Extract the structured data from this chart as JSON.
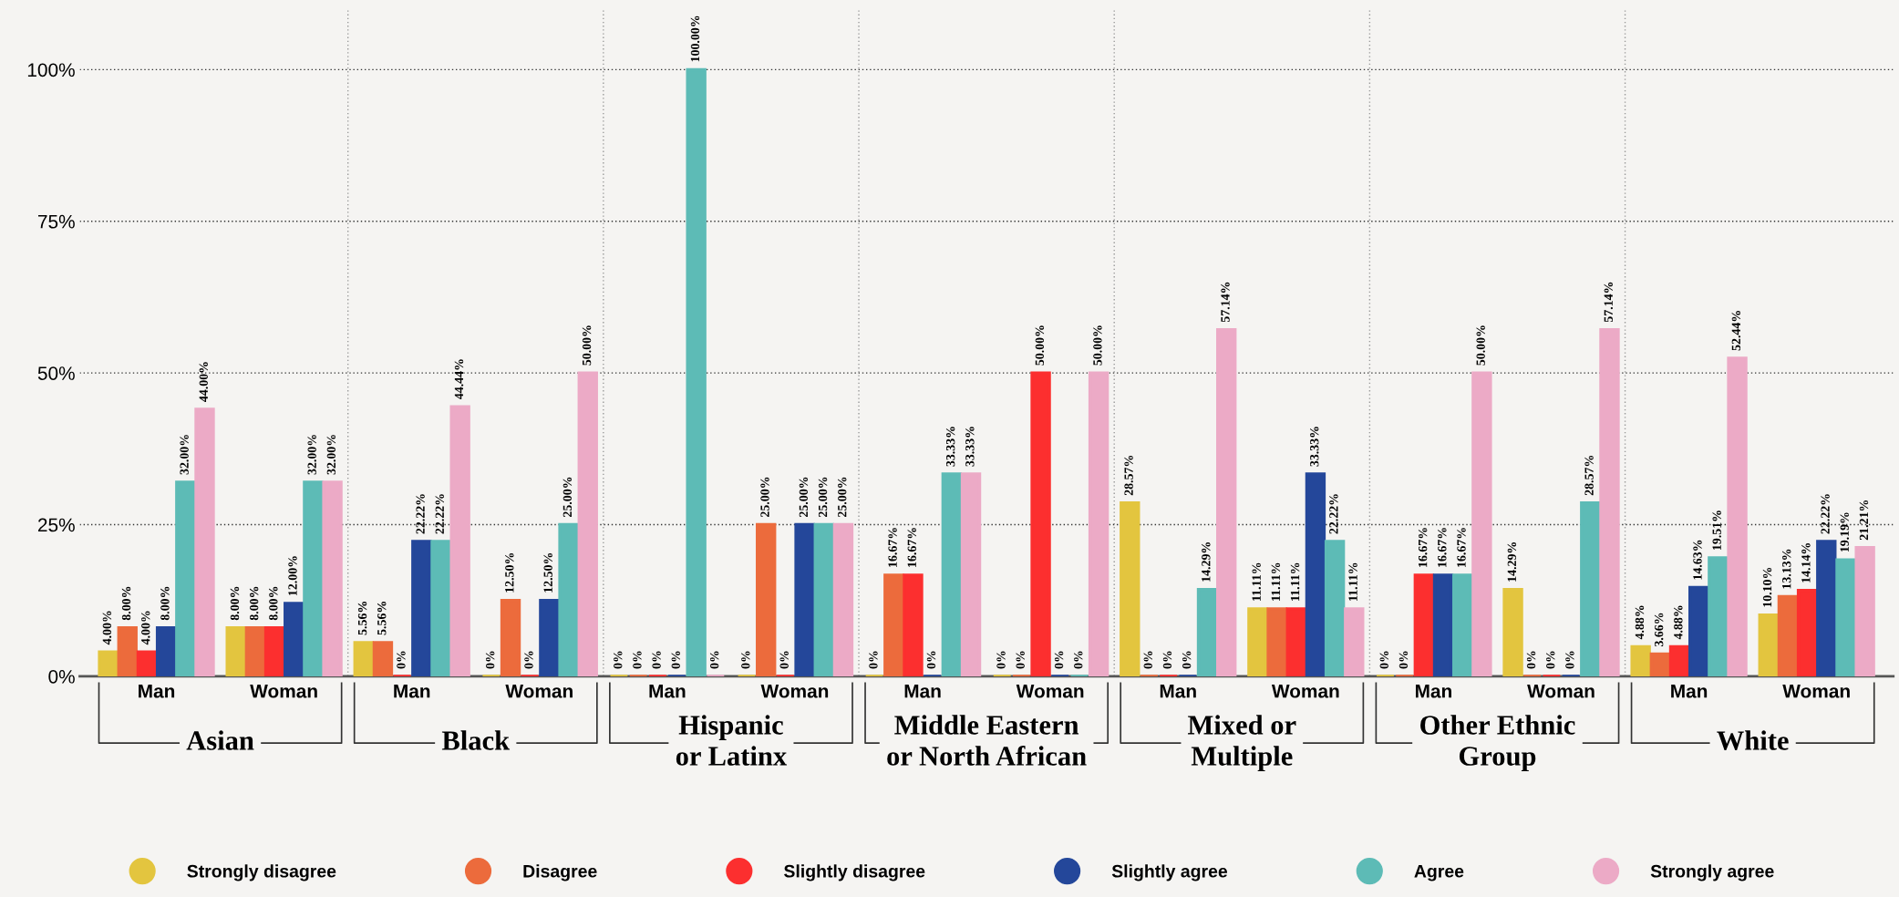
{
  "chart_data": {
    "type": "bar",
    "categories": [
      "Man",
      "Woman",
      "Man",
      "Woman",
      "Man",
      "Woman",
      "Man",
      "Woman",
      "Man",
      "Woman",
      "Man",
      "Woman",
      "Man",
      "Woman"
    ],
    "annotations": [
      "Asian",
      "Black",
      "Hispanic\nor Latinx",
      "Middle Eastern\nor North African",
      "Mixed or\nMultiple",
      "Other Ethnic\nGroup",
      "White"
    ],
    "series": [
      {
        "name": "Strongly disagree",
        "color": "#e3c53f",
        "values": [
          4,
          8,
          5.56,
          0,
          0,
          0,
          0,
          0,
          28.57,
          11.11,
          0,
          14.29,
          4.88,
          10.1
        ],
        "value_labels": [
          "4.00%",
          "8.00%",
          "5.56%",
          "0%",
          "0%",
          "0%",
          "0%",
          "0%",
          "28.57%",
          "11.11%",
          "0%",
          "14.29%",
          "4.88%",
          "10.10%"
        ]
      },
      {
        "name": "Disagree",
        "color": "#ec6b3c",
        "values": [
          8,
          8,
          5.56,
          12.5,
          0,
          25,
          16.67,
          0,
          0,
          11.11,
          0,
          0,
          3.66,
          13.13
        ],
        "value_labels": [
          "8.00%",
          "8.00%",
          "5.56%",
          "12.50%",
          "0%",
          "25.00%",
          "16.67%",
          "0%",
          "0%",
          "11.11%",
          "0%",
          "0%",
          "3.66%",
          "13.13%"
        ]
      },
      {
        "name": "Slightly disagree",
        "color": "#fc2f2f",
        "values": [
          4,
          8,
          0,
          0,
          0,
          0,
          16.67,
          50,
          0,
          11.11,
          16.67,
          0,
          4.88,
          14.14
        ],
        "value_labels": [
          "4.00%",
          "8.00%",
          "0%",
          "0%",
          "0%",
          "0%",
          "16.67%",
          "50.00%",
          "0%",
          "11.11%",
          "16.67%",
          "0%",
          "4.88%",
          "14.14%"
        ]
      },
      {
        "name": "Slightly agree",
        "color": "#24479a",
        "values": [
          8,
          12,
          22.22,
          12.5,
          0,
          25,
          0,
          0,
          0,
          33.33,
          16.67,
          0,
          14.63,
          22.22
        ],
        "value_labels": [
          "8.00%",
          "12.00%",
          "22.22%",
          "12.50%",
          "0%",
          "25.00%",
          "0%",
          "0%",
          "0%",
          "33.33%",
          "16.67%",
          "0%",
          "14.63%",
          "22.22%"
        ]
      },
      {
        "name": "Agree",
        "color": "#5dbbb6",
        "values": [
          32,
          32,
          22.22,
          25,
          100,
          25,
          33.33,
          0,
          14.29,
          22.22,
          16.67,
          28.57,
          19.51,
          19.19
        ],
        "value_labels": [
          "32.00%",
          "32.00%",
          "22.22%",
          "25.00%",
          "100.00%",
          "25.00%",
          "33.33%",
          "0%",
          "14.29%",
          "22.22%",
          "16.67%",
          "28.57%",
          "19.51%",
          "19.19%"
        ]
      },
      {
        "name": "Strongly agree",
        "color": "#ecaac6",
        "values": [
          44,
          32,
          44.44,
          50,
          0,
          25,
          33.33,
          50,
          57.14,
          11.11,
          50,
          57.14,
          52.44,
          21.21
        ],
        "value_labels": [
          "44.00%",
          "32.00%",
          "44.44%",
          "50.00%",
          "0%",
          "25.00%",
          "33.33%",
          "50.00%",
          "57.14%",
          "11.11%",
          "50.00%",
          "57.14%",
          "52.44%",
          "21.21%"
        ]
      }
    ],
    "ylim": [
      0,
      110
    ],
    "yticks": [
      {
        "value": 0,
        "label": "0%"
      },
      {
        "value": 25,
        "label": "25%"
      },
      {
        "value": 50,
        "label": "50%"
      },
      {
        "value": 75,
        "label": "75%"
      },
      {
        "value": 100,
        "label": "100%"
      }
    ],
    "grid": "y",
    "legend": "bottom"
  }
}
